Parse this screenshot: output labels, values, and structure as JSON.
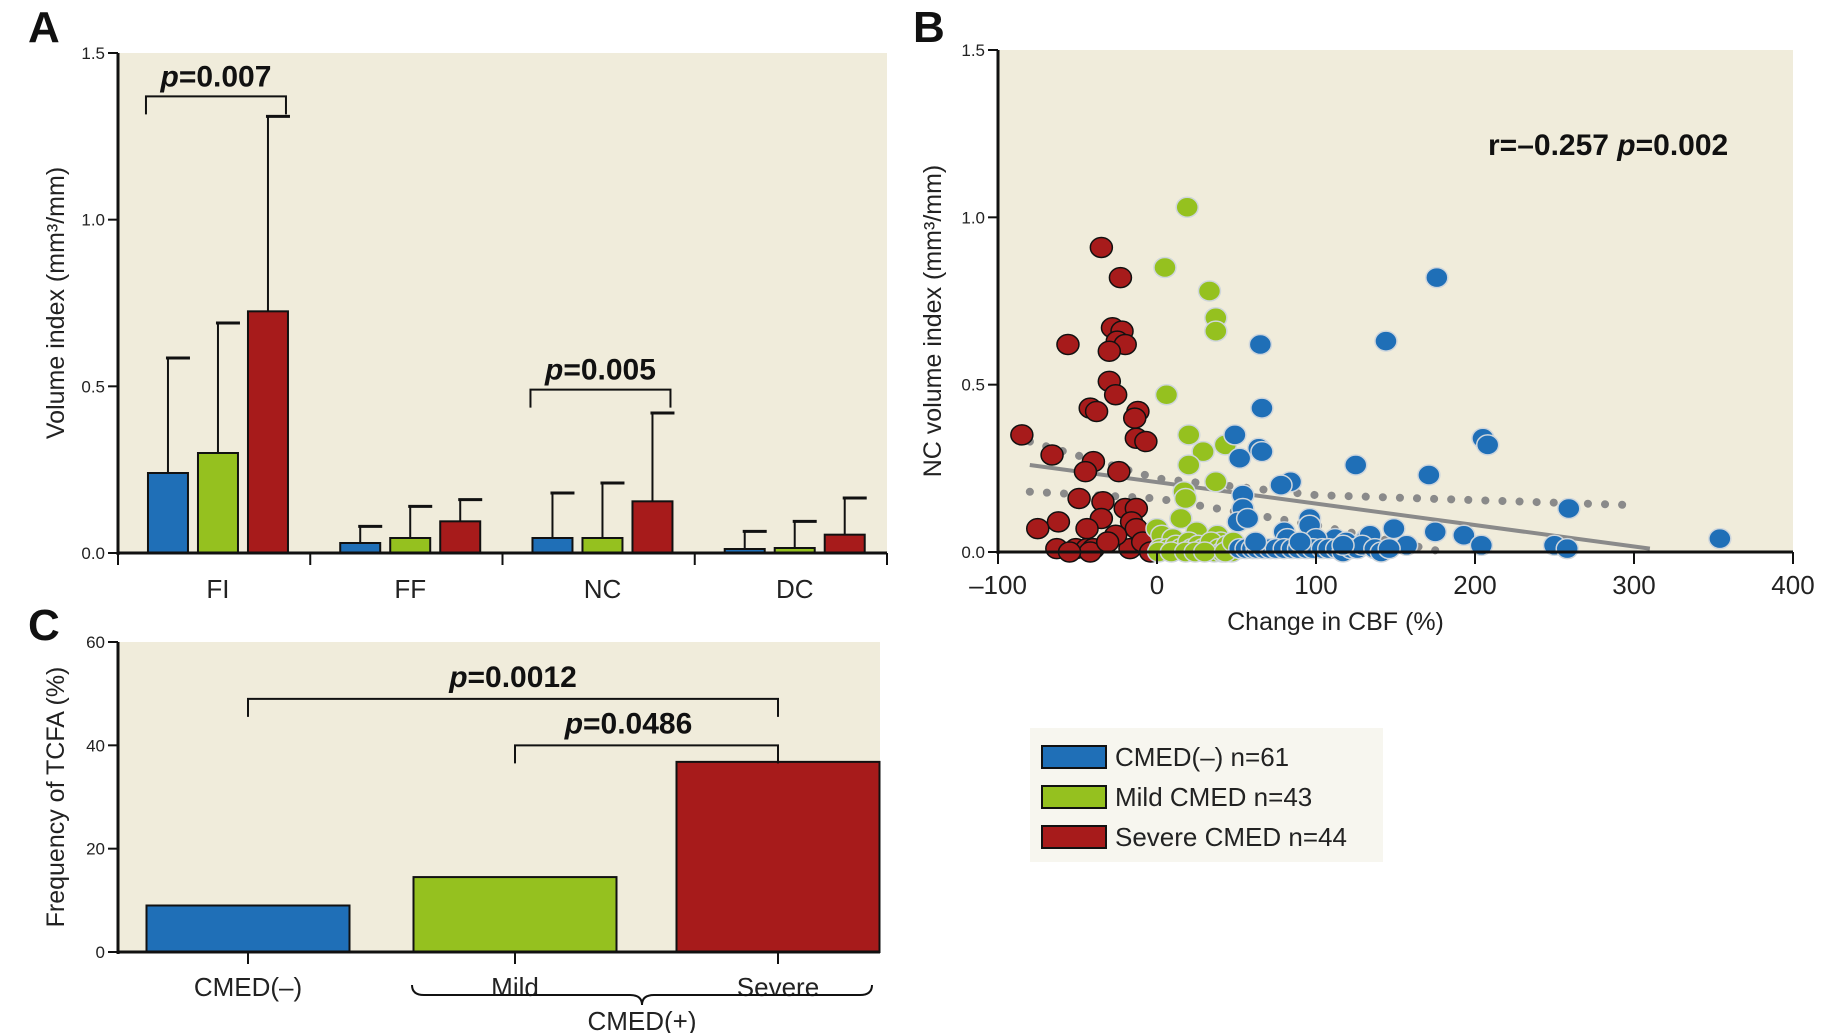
{
  "colors": {
    "cmed_neg": "#1f6fb7",
    "mild": "#95c11f",
    "severe": "#a71b1b",
    "plot_bg": "#f0ecdb",
    "legend_bg": "#f7f6ef",
    "regression": "#8a8a8a"
  },
  "legend": {
    "items": [
      {
        "label": "CMED(–) n=61",
        "color_key": "cmed_neg"
      },
      {
        "label": "Mild CMED n=43",
        "color_key": "mild"
      },
      {
        "label": "Severe CMED n=44",
        "color_key": "severe"
      }
    ]
  },
  "chart_data": [
    {
      "panel": "A",
      "type": "bar",
      "title": "",
      "ylabel": "Volume index (mm³/mm)",
      "xlabel": "",
      "ylim": [
        0,
        1.5
      ],
      "yticks": [
        "0.0",
        "0.5",
        "1.0",
        "1.5"
      ],
      "categories": [
        "FI",
        "FF",
        "NC",
        "DC"
      ],
      "series": [
        {
          "name": "CMED(–)",
          "color_key": "cmed_neg",
          "values": [
            0.24,
            0.03,
            0.045,
            0.012
          ],
          "error_upper": [
            0.585,
            0.08,
            0.18,
            0.065
          ]
        },
        {
          "name": "Mild CMED",
          "color_key": "mild",
          "values": [
            0.3,
            0.045,
            0.045,
            0.015
          ],
          "error_upper": [
            0.69,
            0.14,
            0.21,
            0.095
          ]
        },
        {
          "name": "Severe CMED",
          "color_key": "severe",
          "values": [
            0.725,
            0.095,
            0.155,
            0.055
          ],
          "error_upper": [
            1.31,
            0.16,
            0.42,
            0.165
          ]
        }
      ],
      "annotations": [
        {
          "label_prefix": "p",
          "label": "=0.007",
          "category": "FI",
          "from_series": 0,
          "to_series": 2,
          "y": 1.37
        },
        {
          "label_prefix": "p",
          "label": "=0.005",
          "category": "NC",
          "from_series": 0,
          "to_series": 2,
          "y": 0.49
        }
      ],
      "grid": false
    },
    {
      "panel": "B",
      "type": "scatter",
      "title": "",
      "xlabel": "Change in CBF (%)",
      "ylabel": "NC volume index (mm³/mm)",
      "xlim": [
        -100,
        400
      ],
      "ylim": [
        0,
        1.5
      ],
      "xticks": [
        "–100",
        "0",
        "100",
        "200",
        "300",
        "400"
      ],
      "yticks": [
        "0.0",
        "0.5",
        "1.0",
        "1.5"
      ],
      "annotation": {
        "r_text": "r=–0.257 ",
        "p_prefix": "p",
        "p_text": "=0.002"
      },
      "regression": {
        "x": [
          -80,
          310
        ],
        "y": [
          0.26,
          0.01
        ]
      },
      "ci_upper": {
        "x": [
          -80,
          0,
          100,
          200,
          300
        ],
        "y": [
          0.33,
          0.22,
          0.17,
          0.155,
          0.14
        ]
      },
      "ci_lower": {
        "x": [
          -80,
          0,
          100,
          180
        ],
        "y": [
          0.18,
          0.16,
          0.08,
          0.0
        ]
      },
      "series": [
        {
          "name": "Severe CMED",
          "color_key": "severe",
          "points": [
            [
              -35,
              0.91
            ],
            [
              -23,
              0.82
            ],
            [
              -56,
              0.62
            ],
            [
              -28,
              0.67
            ],
            [
              -22,
              0.66
            ],
            [
              -25,
              0.63
            ],
            [
              -20,
              0.62
            ],
            [
              -30,
              0.6
            ],
            [
              -30,
              0.51
            ],
            [
              -26,
              0.47
            ],
            [
              -42,
              0.43
            ],
            [
              -38,
              0.42
            ],
            [
              -12,
              0.42
            ],
            [
              -14,
              0.4
            ],
            [
              -85,
              0.35
            ],
            [
              -13,
              0.34
            ],
            [
              -7,
              0.33
            ],
            [
              -66,
              0.29
            ],
            [
              -40,
              0.27
            ],
            [
              -45,
              0.24
            ],
            [
              -24,
              0.24
            ],
            [
              -49,
              0.16
            ],
            [
              -34,
              0.15
            ],
            [
              -20,
              0.13
            ],
            [
              -13,
              0.13
            ],
            [
              -35,
              0.1
            ],
            [
              -16,
              0.09
            ],
            [
              -62,
              0.09
            ],
            [
              -75,
              0.07
            ],
            [
              -44,
              0.07
            ],
            [
              -13,
              0.07
            ],
            [
              -6,
              0.02
            ],
            [
              -63,
              0.01
            ],
            [
              -51,
              0.01
            ],
            [
              -44,
              0.01
            ],
            [
              -40,
              0.01
            ],
            [
              -17,
              0.01
            ],
            [
              -3,
              0.01
            ],
            [
              -9,
              0.03
            ],
            [
              -42,
              0.0
            ],
            [
              -55,
              0.0
            ],
            [
              -26,
              0.05
            ],
            [
              -31,
              0.03
            ],
            [
              -4,
              0.0
            ]
          ]
        },
        {
          "name": "Mild CMED",
          "color_key": "mild",
          "points": [
            [
              19,
              1.03
            ],
            [
              5,
              0.85
            ],
            [
              33,
              0.78
            ],
            [
              37,
              0.7
            ],
            [
              37,
              0.66
            ],
            [
              6,
              0.47
            ],
            [
              20,
              0.35
            ],
            [
              43,
              0.32
            ],
            [
              29,
              0.3
            ],
            [
              20,
              0.26
            ],
            [
              37,
              0.21
            ],
            [
              17,
              0.18
            ],
            [
              18,
              0.16
            ],
            [
              15,
              0.1
            ],
            [
              0,
              0.07
            ],
            [
              3,
              0.05
            ],
            [
              10,
              0.04
            ],
            [
              25,
              0.06
            ],
            [
              38,
              0.05
            ],
            [
              40,
              0.03
            ],
            [
              2,
              0.01
            ],
            [
              7,
              0.01
            ],
            [
              12,
              0.02
            ],
            [
              15,
              0.01
            ],
            [
              20,
              0.03
            ],
            [
              22,
              0.01
            ],
            [
              26,
              0.02
            ],
            [
              29,
              0.01
            ],
            [
              32,
              0.01
            ],
            [
              34,
              0.03
            ],
            [
              36,
              0.0
            ],
            [
              39,
              0.01
            ],
            [
              41,
              0.0
            ],
            [
              44,
              0.02
            ],
            [
              46,
              0.01
            ],
            [
              47,
              0.0
            ],
            [
              1,
              0.0
            ],
            [
              9,
              0.0
            ],
            [
              18,
              0.0
            ],
            [
              24,
              0.0
            ],
            [
              30,
              0.0
            ],
            [
              43,
              0.0
            ],
            [
              48,
              0.03
            ]
          ]
        },
        {
          "name": "CMED(–)",
          "color_key": "cmed_neg",
          "points": [
            [
              176,
              0.82
            ],
            [
              144,
              0.63
            ],
            [
              65,
              0.62
            ],
            [
              66,
              0.43
            ],
            [
              49,
              0.35
            ],
            [
              64,
              0.31
            ],
            [
              66,
              0.3
            ],
            [
              52,
              0.28
            ],
            [
              205,
              0.34
            ],
            [
              208,
              0.32
            ],
            [
              125,
              0.26
            ],
            [
              171,
              0.23
            ],
            [
              84,
              0.21
            ],
            [
              78,
              0.2
            ],
            [
              54,
              0.17
            ],
            [
              54,
              0.13
            ],
            [
              96,
              0.1
            ],
            [
              51,
              0.09
            ],
            [
              259,
              0.13
            ],
            [
              57,
              0.1
            ],
            [
              175,
              0.06
            ],
            [
              149,
              0.07
            ],
            [
              193,
              0.05
            ],
            [
              354,
              0.04
            ],
            [
              204,
              0.02
            ],
            [
              250,
              0.02
            ],
            [
              258,
              0.01
            ],
            [
              157,
              0.02
            ],
            [
              132,
              0.04
            ],
            [
              134,
              0.05
            ],
            [
              80,
              0.06
            ],
            [
              82,
              0.04
            ],
            [
              112,
              0.04
            ],
            [
              119,
              0.03
            ],
            [
              96,
              0.08
            ],
            [
              100,
              0.04
            ],
            [
              52,
              0.01
            ],
            [
              56,
              0.01
            ],
            [
              60,
              0.01
            ],
            [
              63,
              0.01
            ],
            [
              67,
              0.01
            ],
            [
              71,
              0.01
            ],
            [
              75,
              0.01
            ],
            [
              80,
              0.01
            ],
            [
              85,
              0.01
            ],
            [
              89,
              0.01
            ],
            [
              94,
              0.01
            ],
            [
              98,
              0.01
            ],
            [
              104,
              0.01
            ],
            [
              108,
              0.01
            ],
            [
              113,
              0.01
            ],
            [
              117,
              0.0
            ],
            [
              122,
              0.01
            ],
            [
              126,
              0.01
            ],
            [
              129,
              0.02
            ],
            [
              137,
              0.01
            ],
            [
              141,
              0.0
            ],
            [
              146,
              0.01
            ],
            [
              62,
              0.03
            ],
            [
              90,
              0.03
            ],
            [
              117,
              0.02
            ]
          ]
        }
      ],
      "grid": false
    },
    {
      "panel": "C",
      "type": "bar",
      "title": "",
      "ylabel": "Frequency of TCFA (%)",
      "xlabel": "",
      "ylim": [
        0,
        60
      ],
      "yticks": [
        "0",
        "20",
        "40",
        "60"
      ],
      "categories": [
        "CMED(–)",
        "Mild",
        "Severe"
      ],
      "group_label": "CMED(+)",
      "values": [
        9,
        14.5,
        36.8
      ],
      "color_keys": [
        "cmed_neg",
        "mild",
        "severe"
      ],
      "annotations": [
        {
          "label_prefix": "p",
          "label": "=0.0012",
          "from": 0,
          "to": 2,
          "y": 49
        },
        {
          "label_prefix": "p",
          "label": "=0.0486",
          "from": 1,
          "to": 2,
          "y": 40
        }
      ],
      "grid": false
    }
  ],
  "panels": {
    "a_letter": "A",
    "b_letter": "B",
    "c_letter": "C"
  }
}
